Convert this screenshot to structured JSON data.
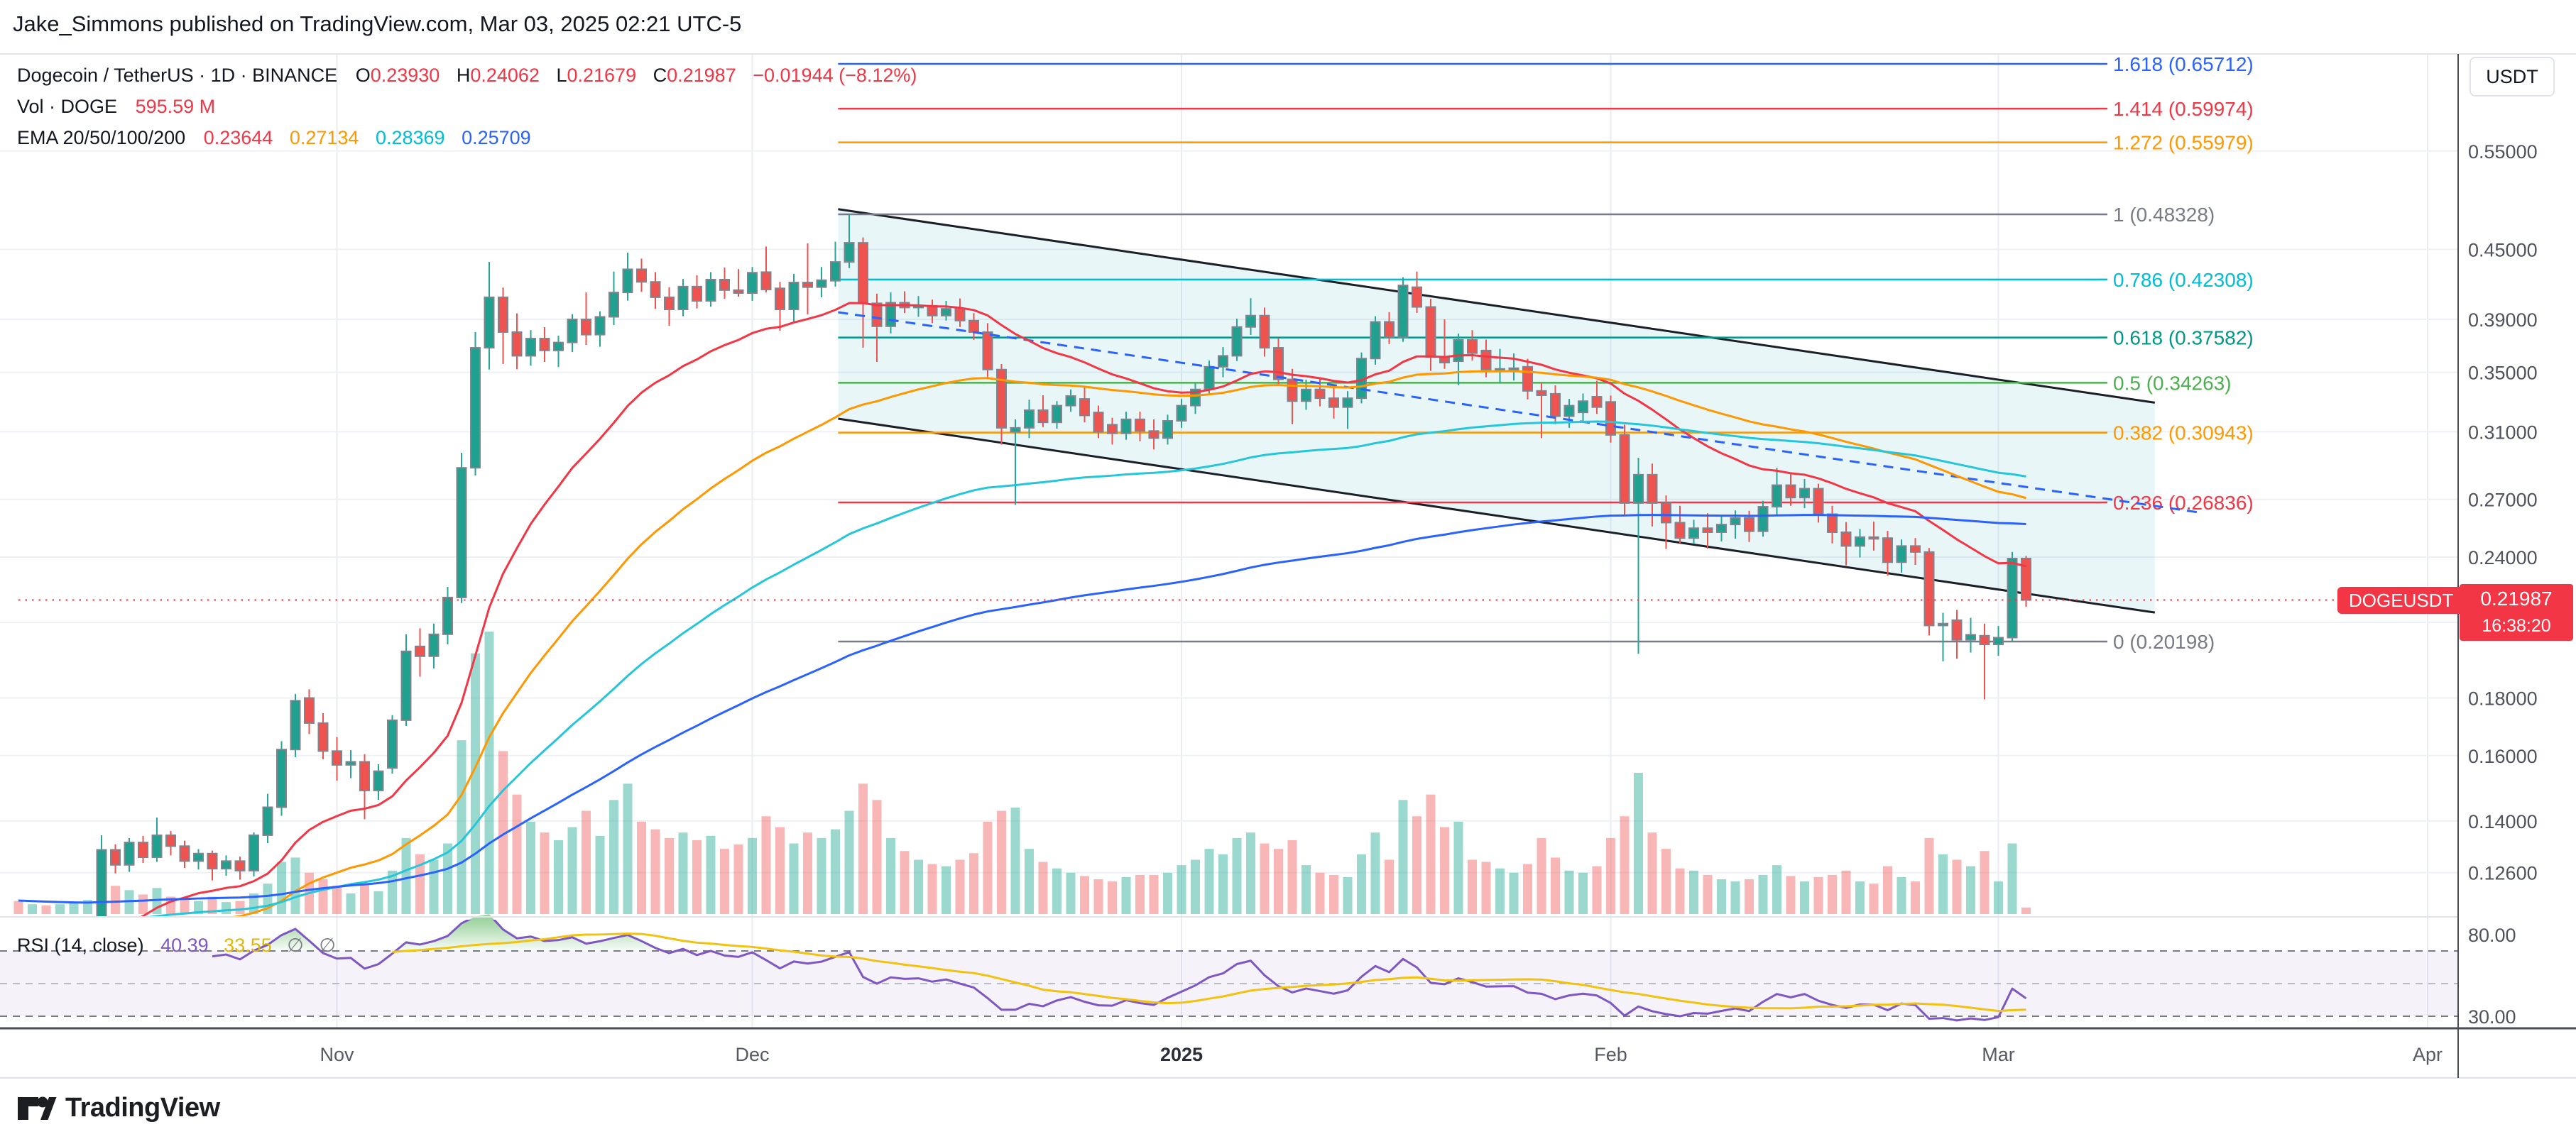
{
  "header": {
    "publish_line": "Jake_Simmons published on TradingView.com, Mar 03, 2025 02:21 UTC-5"
  },
  "legend": {
    "title": "Dogecoin / TetherUS · 1D · BINANCE",
    "ohlc": {
      "o_label": "O",
      "o": "0.23930",
      "h_label": "H",
      "h": "0.24062",
      "l_label": "L",
      "l": "0.21679",
      "c_label": "C",
      "c": "0.21987",
      "change": "−0.01944 (−8.12%)"
    },
    "vol_label": "Vol · DOGE",
    "vol_value": "595.59 M",
    "ema_label": "EMA 20/50/100/200",
    "ema": {
      "v20": "0.23644",
      "v50": "0.27134",
      "v100": "0.28369",
      "v200": "0.25709"
    }
  },
  "price_scale": {
    "currency": "USDT",
    "tag": {
      "symbol": "DOGEUSDT",
      "price": "0.21987",
      "countdown": "16:38:20"
    }
  },
  "rsi_pane": {
    "label": "RSI (14, close)",
    "value": "40.39",
    "ma_value": "33.55",
    "empty1": "∅",
    "empty2": "∅",
    "scale": [
      "80.00",
      "30.00"
    ]
  },
  "logo": {
    "text": "TradingView"
  },
  "chart_data": {
    "type": "candlestick",
    "symbol": "DOGEUSDT",
    "exchange": "BINANCE",
    "interval": "1D",
    "start_date": "2024-10-09",
    "last": {
      "open": 0.2393,
      "high": 0.24062,
      "low": 0.21679,
      "close": 0.21987,
      "change": -0.01944,
      "change_pct": -8.12
    },
    "volume_last_label": "595.59 M",
    "ema_periods": [
      20,
      50,
      100,
      200
    ],
    "ema_colors": [
      "#f23645",
      "#ff9800",
      "#26c6da",
      "#2962ff"
    ],
    "ema_last": [
      0.23644,
      0.27134,
      0.28369,
      0.25709
    ],
    "price_gridlines": [
      0.55,
      0.45,
      0.39,
      0.35,
      0.31,
      0.27,
      0.24,
      0.21,
      0.18,
      0.16,
      0.14,
      0.126
    ],
    "months": [
      {
        "label": "Nov",
        "day": 23,
        "bold": false
      },
      {
        "label": "Dec",
        "day": 53,
        "bold": false
      },
      {
        "label": "2025",
        "day": 84,
        "bold": true
      },
      {
        "label": "Feb",
        "day": 115,
        "bold": false
      },
      {
        "label": "Mar",
        "day": 143,
        "bold": false
      },
      {
        "label": "Apr",
        "day": 174,
        "bold": false
      }
    ],
    "fib_levels": [
      {
        "label": "1.618 (0.65712)",
        "price": 0.65712,
        "color": "#2962ff"
      },
      {
        "label": "1.414 (0.59974)",
        "price": 0.59974,
        "color": "#f23645"
      },
      {
        "label": "1.272 (0.55979)",
        "price": 0.55979,
        "color": "#ff9800"
      },
      {
        "label": "1 (0.48328)",
        "price": 0.48328,
        "color": "#787b86"
      },
      {
        "label": "0.786 (0.42308)",
        "price": 0.42308,
        "color": "#00bcd4"
      },
      {
        "label": "0.618 (0.37582)",
        "price": 0.37582,
        "color": "#009688"
      },
      {
        "label": "0.5 (0.34263)",
        "price": 0.34263,
        "color": "#4caf50"
      },
      {
        "label": "0.382 (0.30943)",
        "price": 0.30943,
        "color": "#ff9800"
      },
      {
        "label": "0.236 (0.26836)",
        "price": 0.26836,
        "color": "#f23645"
      },
      {
        "label": "0 (0.20198)",
        "price": 0.20198,
        "color": "#787b86"
      }
    ],
    "channel": {
      "day1": 59.2,
      "upper_p1": 0.4884,
      "lower_p1": 0.3184,
      "day2": 154.3,
      "upper_p2": 0.329,
      "lower_p2": 0.2143,
      "color": "#1b1f27",
      "fill": "rgba(42,166,190,0.10)"
    },
    "trendline": {
      "day1": 59.2,
      "p1": 0.3957,
      "day2": 157.6,
      "p2": 0.2628,
      "color": "#2962ff",
      "style": "dashed"
    },
    "price_line": {
      "price": 0.21987,
      "color": "#f23645"
    },
    "rsi": {
      "period": 14,
      "source": "close",
      "overbought": 70,
      "mid": 50,
      "oversold": 30,
      "last": 40.39,
      "ma_last": 33.55
    },
    "volume_unit": "B DOGE",
    "candles": [
      [
        0.108,
        0.1095,
        0.1042,
        0.1065,
        1.2
      ],
      [
        0.1065,
        0.1085,
        0.105,
        0.1075,
        0.9
      ],
      [
        0.1075,
        0.109,
        0.1048,
        0.106,
        0.8
      ],
      [
        0.106,
        0.1095,
        0.1052,
        0.108,
        0.9
      ],
      [
        0.108,
        0.1115,
        0.1068,
        0.11,
        1.0
      ],
      [
        0.11,
        0.1142,
        0.1085,
        0.113,
        1.3
      ],
      [
        0.113,
        0.136,
        0.1122,
        0.132,
        4.2
      ],
      [
        0.132,
        0.1335,
        0.1258,
        0.128,
        2.6
      ],
      [
        0.128,
        0.1352,
        0.1262,
        0.134,
        2.2
      ],
      [
        0.134,
        0.1358,
        0.1285,
        0.13,
        1.8
      ],
      [
        0.13,
        0.141,
        0.1288,
        0.136,
        2.4
      ],
      [
        0.136,
        0.1372,
        0.1305,
        0.133,
        1.6
      ],
      [
        0.133,
        0.1345,
        0.1272,
        0.129,
        1.5
      ],
      [
        0.129,
        0.1322,
        0.1268,
        0.131,
        1.2
      ],
      [
        0.131,
        0.1318,
        0.124,
        0.127,
        1.6
      ],
      [
        0.127,
        0.1305,
        0.1252,
        0.129,
        1.1
      ],
      [
        0.129,
        0.1302,
        0.1242,
        0.1265,
        1.2
      ],
      [
        0.1265,
        0.1368,
        0.125,
        0.136,
        1.9
      ],
      [
        0.136,
        0.148,
        0.1338,
        0.144,
        2.8
      ],
      [
        0.144,
        0.1648,
        0.1415,
        0.162,
        4.8
      ],
      [
        0.162,
        0.1815,
        0.1595,
        0.179,
        5.2
      ],
      [
        0.18,
        0.1832,
        0.1672,
        0.171,
        3.8
      ],
      [
        0.171,
        0.1745,
        0.1588,
        0.1615,
        3.2
      ],
      [
        0.1615,
        0.1662,
        0.152,
        0.157,
        2.6
      ],
      [
        0.157,
        0.1618,
        0.1528,
        0.158,
        1.9
      ],
      [
        0.158,
        0.1605,
        0.1405,
        0.149,
        2.8
      ],
      [
        0.149,
        0.1572,
        0.1462,
        0.155,
        2.1
      ],
      [
        0.156,
        0.1738,
        0.1542,
        0.172,
        4.0
      ],
      [
        0.172,
        0.205,
        0.17,
        0.198,
        7.0
      ],
      [
        0.2,
        0.2075,
        0.188,
        0.196,
        5.5
      ],
      [
        0.196,
        0.2095,
        0.1912,
        0.205,
        5.0
      ],
      [
        0.205,
        0.2258,
        0.2008,
        0.221,
        6.5
      ],
      [
        0.221,
        0.297,
        0.2185,
        0.288,
        16
      ],
      [
        0.288,
        0.38,
        0.2835,
        0.368,
        24
      ],
      [
        0.368,
        0.4386,
        0.352,
        0.408,
        26
      ],
      [
        0.408,
        0.4162,
        0.356,
        0.38,
        15
      ],
      [
        0.38,
        0.3948,
        0.3522,
        0.362,
        11
      ],
      [
        0.362,
        0.3815,
        0.3548,
        0.375,
        8.5
      ],
      [
        0.375,
        0.3838,
        0.3575,
        0.366,
        7.5
      ],
      [
        0.366,
        0.3772,
        0.3538,
        0.372,
        6.8
      ],
      [
        0.372,
        0.3942,
        0.3648,
        0.39,
        8.0
      ],
      [
        0.39,
        0.412,
        0.3702,
        0.378,
        9.5
      ],
      [
        0.378,
        0.3965,
        0.3688,
        0.392,
        7.2
      ],
      [
        0.392,
        0.43,
        0.3855,
        0.412,
        10.5
      ],
      [
        0.412,
        0.447,
        0.4052,
        0.432,
        12
      ],
      [
        0.432,
        0.4415,
        0.4125,
        0.421,
        8.5
      ],
      [
        0.421,
        0.4295,
        0.3985,
        0.408,
        7.8
      ],
      [
        0.408,
        0.4165,
        0.385,
        0.398,
        7.0
      ],
      [
        0.398,
        0.4235,
        0.3925,
        0.417,
        7.5
      ],
      [
        0.417,
        0.4268,
        0.3988,
        0.405,
        6.8
      ],
      [
        0.405,
        0.4295,
        0.4002,
        0.423,
        7.2
      ],
      [
        0.423,
        0.4335,
        0.4068,
        0.414,
        6.0
      ],
      [
        0.414,
        0.4322,
        0.4085,
        0.4115,
        6.4
      ],
      [
        0.4115,
        0.434,
        0.405,
        0.429,
        7.0
      ],
      [
        0.4295,
        0.4525,
        0.412,
        0.4145,
        9.0
      ],
      [
        0.4155,
        0.421,
        0.381,
        0.398,
        8.0
      ],
      [
        0.398,
        0.428,
        0.3875,
        0.4205,
        6.5
      ],
      [
        0.4205,
        0.4555,
        0.394,
        0.4165,
        7.5
      ],
      [
        0.4165,
        0.434,
        0.408,
        0.4225,
        7.0
      ],
      [
        0.422,
        0.457,
        0.417,
        0.4385,
        7.8
      ],
      [
        0.4385,
        0.48328,
        0.433,
        0.456,
        9.5
      ],
      [
        0.456,
        0.461,
        0.368,
        0.403,
        12
      ],
      [
        0.403,
        0.411,
        0.3575,
        0.3845,
        10.5
      ],
      [
        0.3845,
        0.412,
        0.379,
        0.4035,
        7.0
      ],
      [
        0.4035,
        0.413,
        0.395,
        0.3995,
        5.8
      ],
      [
        0.3995,
        0.409,
        0.392,
        0.401,
        5.0
      ],
      [
        0.401,
        0.406,
        0.387,
        0.393,
        4.6
      ],
      [
        0.393,
        0.405,
        0.389,
        0.3985,
        4.4
      ],
      [
        0.3985,
        0.407,
        0.384,
        0.389,
        5.0
      ],
      [
        0.389,
        0.395,
        0.374,
        0.38,
        5.6
      ],
      [
        0.38,
        0.387,
        0.345,
        0.352,
        8.5
      ],
      [
        0.352,
        0.356,
        0.302,
        0.3125,
        9.5
      ],
      [
        0.31,
        0.318,
        0.267,
        0.3125,
        9.8
      ],
      [
        0.3125,
        0.331,
        0.306,
        0.324,
        6.0
      ],
      [
        0.324,
        0.334,
        0.313,
        0.316,
        4.8
      ],
      [
        0.316,
        0.33,
        0.312,
        0.327,
        4.2
      ],
      [
        0.327,
        0.338,
        0.323,
        0.3335,
        3.8
      ],
      [
        0.3315,
        0.34,
        0.316,
        0.3205,
        3.5
      ],
      [
        0.3225,
        0.327,
        0.306,
        0.31,
        3.2
      ],
      [
        0.3145,
        0.319,
        0.302,
        0.309,
        3.0
      ],
      [
        0.309,
        0.323,
        0.305,
        0.318,
        3.4
      ],
      [
        0.318,
        0.323,
        0.304,
        0.3105,
        3.6
      ],
      [
        0.3105,
        0.318,
        0.299,
        0.306,
        3.6
      ],
      [
        0.306,
        0.321,
        0.302,
        0.317,
        3.8
      ],
      [
        0.317,
        0.3315,
        0.3125,
        0.327,
        4.5
      ],
      [
        0.327,
        0.3422,
        0.3215,
        0.338,
        5.0
      ],
      [
        0.338,
        0.3585,
        0.3342,
        0.354,
        6.0
      ],
      [
        0.354,
        0.3685,
        0.3465,
        0.362,
        5.5
      ],
      [
        0.362,
        0.3905,
        0.3582,
        0.384,
        7.0
      ],
      [
        0.384,
        0.4072,
        0.3778,
        0.393,
        7.5
      ],
      [
        0.393,
        0.3995,
        0.3615,
        0.368,
        6.5
      ],
      [
        0.368,
        0.3752,
        0.3408,
        0.345,
        6.0
      ],
      [
        0.345,
        0.3525,
        0.3148,
        0.33,
        6.8
      ],
      [
        0.33,
        0.3448,
        0.3242,
        0.338,
        4.5
      ],
      [
        0.338,
        0.3465,
        0.3265,
        0.332,
        3.8
      ],
      [
        0.332,
        0.3392,
        0.3185,
        0.326,
        3.6
      ],
      [
        0.326,
        0.3368,
        0.3118,
        0.332,
        3.4
      ],
      [
        0.332,
        0.3645,
        0.3285,
        0.36,
        5.5
      ],
      [
        0.36,
        0.3925,
        0.3555,
        0.388,
        7.5
      ],
      [
        0.388,
        0.3958,
        0.3708,
        0.376,
        5.0
      ],
      [
        0.376,
        0.425,
        0.3725,
        0.418,
        10.5
      ],
      [
        0.4165,
        0.43,
        0.3952,
        0.4,
        9.0
      ],
      [
        0.4,
        0.4068,
        0.351,
        0.361,
        11
      ],
      [
        0.361,
        0.39,
        0.3525,
        0.357,
        8.0
      ],
      [
        0.358,
        0.3788,
        0.341,
        0.374,
        8.5
      ],
      [
        0.374,
        0.3815,
        0.3585,
        0.364,
        5.0
      ],
      [
        0.366,
        0.3742,
        0.3465,
        0.352,
        4.8
      ],
      [
        0.352,
        0.3672,
        0.3428,
        0.3525,
        4.2
      ],
      [
        0.3525,
        0.3638,
        0.3442,
        0.353,
        3.8
      ],
      [
        0.354,
        0.3598,
        0.3312,
        0.337,
        4.6
      ],
      [
        0.337,
        0.3425,
        0.306,
        0.334,
        7.0
      ],
      [
        0.335,
        0.3408,
        0.3148,
        0.32,
        5.2
      ],
      [
        0.32,
        0.3315,
        0.3125,
        0.327,
        4.0
      ],
      [
        0.3225,
        0.3352,
        0.3162,
        0.33,
        3.8
      ],
      [
        0.333,
        0.344,
        0.3215,
        0.326,
        4.4
      ],
      [
        0.3295,
        0.3338,
        0.3032,
        0.308,
        7.0
      ],
      [
        0.308,
        0.3145,
        0.2618,
        0.268,
        9.0
      ],
      [
        0.268,
        0.294,
        0.197,
        0.284,
        13
      ],
      [
        0.284,
        0.2905,
        0.2555,
        0.268,
        7.5
      ],
      [
        0.268,
        0.2722,
        0.244,
        0.2575,
        6.0
      ],
      [
        0.2575,
        0.2665,
        0.247,
        0.2495,
        4.2
      ],
      [
        0.2495,
        0.259,
        0.2465,
        0.2546,
        4.0
      ],
      [
        0.2546,
        0.2625,
        0.2442,
        0.2525,
        3.6
      ],
      [
        0.2525,
        0.2615,
        0.2478,
        0.2565,
        3.2
      ],
      [
        0.2565,
        0.264,
        0.2492,
        0.26,
        3.0
      ],
      [
        0.26,
        0.2638,
        0.2475,
        0.253,
        3.2
      ],
      [
        0.253,
        0.2692,
        0.2502,
        0.266,
        3.6
      ],
      [
        0.266,
        0.288,
        0.2615,
        0.278,
        4.5
      ],
      [
        0.278,
        0.2842,
        0.2665,
        0.271,
        3.5
      ],
      [
        0.271,
        0.2815,
        0.2652,
        0.276,
        3.0
      ],
      [
        0.276,
        0.2788,
        0.2575,
        0.262,
        3.4
      ],
      [
        0.262,
        0.2665,
        0.2468,
        0.2525,
        3.6
      ],
      [
        0.2525,
        0.2578,
        0.236,
        0.2455,
        4.0
      ],
      [
        0.2455,
        0.2542,
        0.2398,
        0.25,
        3.0
      ],
      [
        0.25,
        0.258,
        0.2432,
        0.2495,
        2.8
      ],
      [
        0.2495,
        0.2532,
        0.231,
        0.2375,
        4.4
      ],
      [
        0.2375,
        0.2488,
        0.2325,
        0.2455,
        3.4
      ],
      [
        0.2455,
        0.2495,
        0.2362,
        0.2425,
        3.0
      ],
      [
        0.2425,
        0.2445,
        0.2045,
        0.2087,
        7.0
      ],
      [
        0.2087,
        0.2142,
        0.194,
        0.2095,
        5.5
      ],
      [
        0.211,
        0.2155,
        0.195,
        0.2027,
        5.0
      ],
      [
        0.2027,
        0.212,
        0.1975,
        0.2048,
        4.4
      ],
      [
        0.2044,
        0.2095,
        0.1795,
        0.2008,
        5.8
      ],
      [
        0.2008,
        0.2085,
        0.1962,
        0.2036,
        3.0
      ],
      [
        0.2036,
        0.2425,
        0.2022,
        0.2393,
        6.5
      ],
      [
        0.2393,
        0.24062,
        0.21679,
        0.21987,
        0.6
      ]
    ]
  }
}
